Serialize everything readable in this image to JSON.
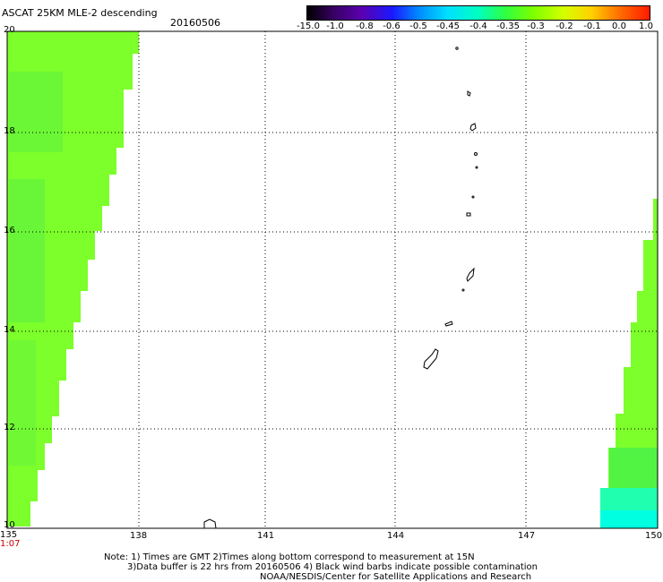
{
  "header": {
    "title": "ASCAT 25KM MLE-2 descending",
    "date": "20160506"
  },
  "colorbar": {
    "labels": [
      "-15.0",
      "-1.0",
      "-0.8",
      "-0.6",
      "-0.5",
      "-0.45",
      "-0.4",
      "-0.35",
      "-0.3",
      "-0.2",
      "-0.1",
      "0.0",
      "1.0"
    ],
    "colors": [
      "#000000",
      "#3a0066",
      "#5a00b0",
      "#1a1aff",
      "#0090ff",
      "#00e0ff",
      "#00ffc0",
      "#30ff40",
      "#7cff00",
      "#d6ff00",
      "#ffd000",
      "#ff7000",
      "#ff1a00"
    ]
  },
  "axes": {
    "lat_labels": [
      "20",
      "18",
      "16",
      "14",
      "12",
      "10"
    ],
    "lon_labels": [
      "135",
      "138",
      "141",
      "144",
      "147",
      "150"
    ],
    "time_label": "1:07"
  },
  "notes": {
    "line1": "Note: 1) Times are GMT 2)Times along bottom correspond to measurement at 15N",
    "line2": "3)Data buffer is 22 hrs from 20160506 4) Black wind barbs indicate possible contamination",
    "line3": "NOAA/NESDIS/Center for Satellite Applications and Research"
  },
  "style": {
    "swath_green": "#7cff2a",
    "swath_dark": "#3aff30",
    "swath_cyan": "#00ffd0"
  }
}
